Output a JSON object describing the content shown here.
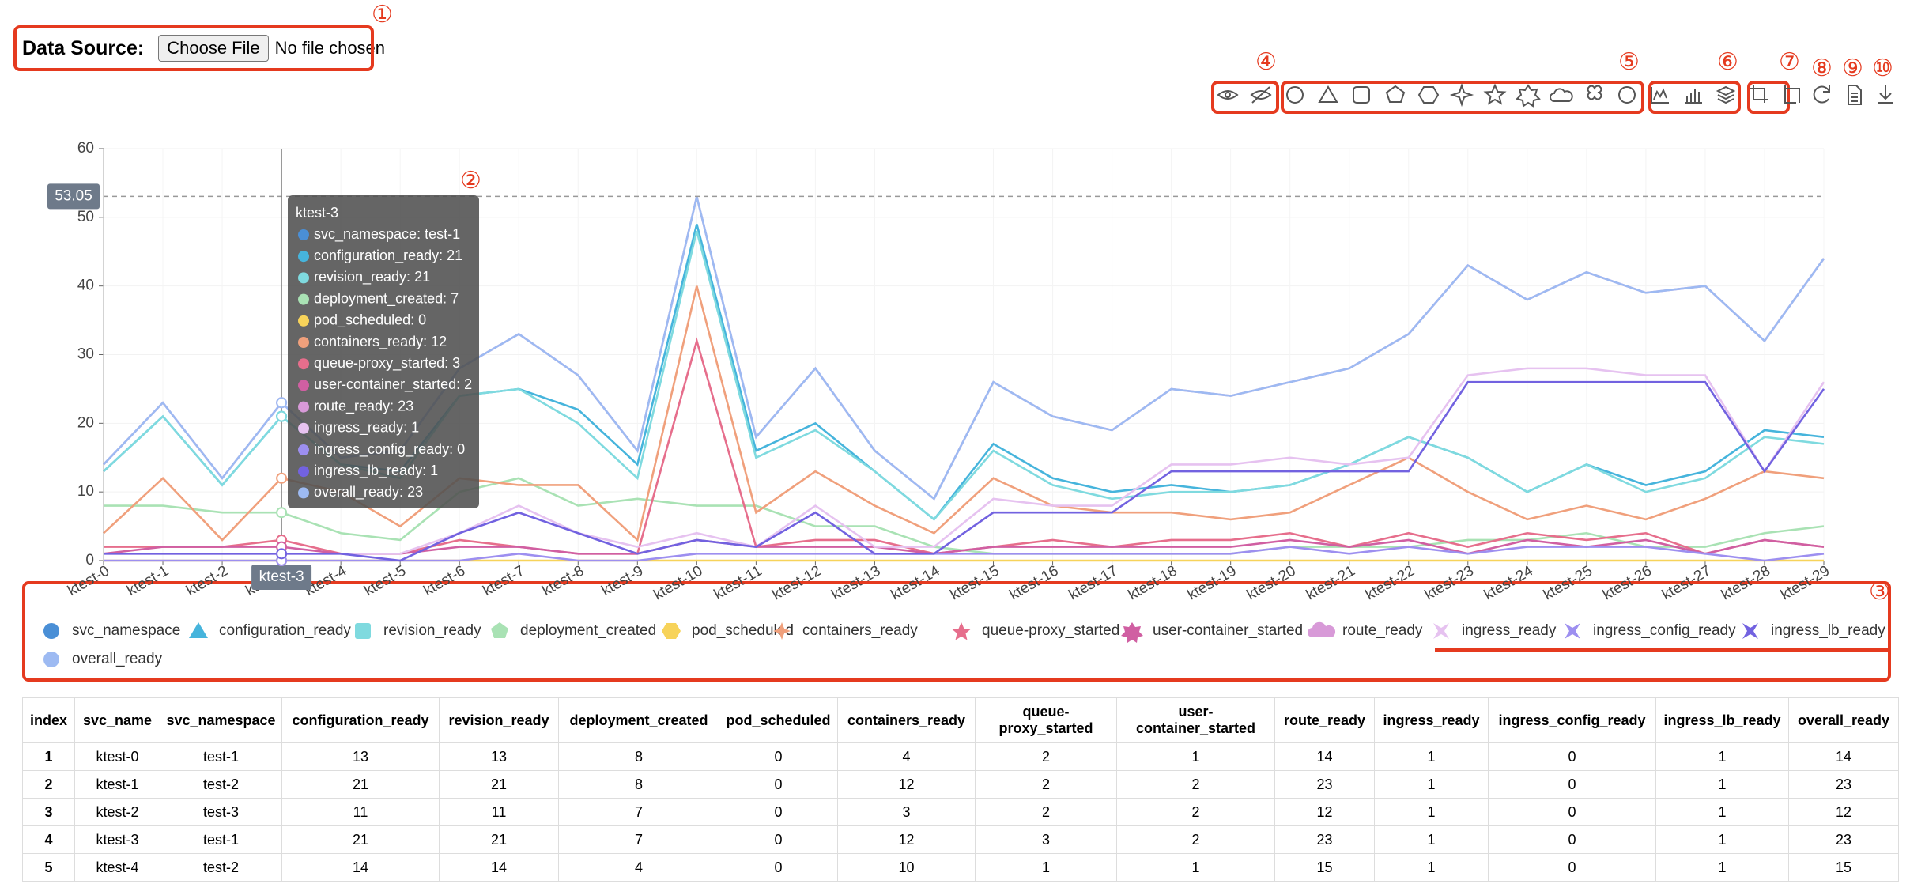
{
  "header": {
    "label": "Data Source:",
    "button": "Choose File",
    "status": "No file chosen"
  },
  "annotations": [
    "①",
    "②",
    "③",
    "④",
    "⑤",
    "⑥",
    "⑦",
    "⑧",
    "⑨",
    "⑩"
  ],
  "chart_data": {
    "type": "line",
    "categories": [
      "ktest-0",
      "ktest-1",
      "ktest-2",
      "ktest-3",
      "ktest-4",
      "ktest-5",
      "ktest-6",
      "ktest-7",
      "ktest-8",
      "ktest-9",
      "ktest-10",
      "ktest-11",
      "ktest-12",
      "ktest-13",
      "ktest-14",
      "ktest-15",
      "ktest-16",
      "ktest-17",
      "ktest-18",
      "ktest-19",
      "ktest-20",
      "ktest-21",
      "ktest-22",
      "ktest-23",
      "ktest-24",
      "ktest-25",
      "ktest-26",
      "ktest-27",
      "ktest-28",
      "ktest-29"
    ],
    "series": [
      {
        "name": "svc_namespace",
        "color": "#4a8fd6",
        "values": [
          null,
          null,
          null,
          null,
          null,
          null,
          null,
          null,
          null,
          null,
          null,
          null,
          null,
          null,
          null,
          null,
          null,
          null,
          null,
          null,
          null,
          null,
          null,
          null,
          null,
          null,
          null,
          null,
          null,
          null
        ]
      },
      {
        "name": "configuration_ready",
        "color": "#46b4dc",
        "values": [
          13,
          21,
          11,
          21,
          14,
          13,
          24,
          25,
          22,
          14,
          49,
          16,
          20,
          13,
          6,
          17,
          12,
          10,
          11,
          10,
          11,
          14,
          18,
          15,
          10,
          14,
          11,
          13,
          19,
          18
        ]
      },
      {
        "name": "revision_ready",
        "color": "#7fdadf",
        "values": [
          13,
          21,
          11,
          21,
          14,
          12,
          24,
          25,
          20,
          12,
          48,
          15,
          19,
          13,
          6,
          16,
          11,
          9,
          10,
          10,
          11,
          14,
          18,
          15,
          10,
          14,
          10,
          12,
          18,
          17
        ]
      },
      {
        "name": "deployment_created",
        "color": "#a9e2b4",
        "values": [
          8,
          8,
          7,
          7,
          4,
          3,
          10,
          12,
          8,
          9,
          8,
          8,
          5,
          5,
          2,
          1,
          1,
          1,
          1,
          1,
          2,
          2,
          2,
          3,
          3,
          4,
          2,
          2,
          4,
          5
        ]
      },
      {
        "name": "pod_scheduled",
        "color": "#f7d35a",
        "values": [
          0,
          0,
          0,
          0,
          0,
          0,
          0,
          0,
          0,
          0,
          0,
          0,
          0,
          0,
          0,
          0,
          0,
          0,
          0,
          0,
          0,
          0,
          0,
          0,
          0,
          0,
          0,
          0,
          0,
          0
        ]
      },
      {
        "name": "containers_ready",
        "color": "#f0a07c",
        "values": [
          4,
          12,
          3,
          12,
          10,
          5,
          12,
          11,
          11,
          3,
          40,
          7,
          13,
          8,
          4,
          12,
          8,
          7,
          7,
          6,
          7,
          11,
          15,
          10,
          6,
          8,
          6,
          9,
          13,
          12
        ]
      },
      {
        "name": "queue-proxy_started",
        "color": "#e66e8c",
        "values": [
          2,
          2,
          2,
          3,
          1,
          1,
          3,
          2,
          1,
          1,
          32,
          2,
          3,
          3,
          1,
          2,
          3,
          2,
          3,
          3,
          4,
          2,
          4,
          2,
          4,
          3,
          4,
          1,
          3,
          2
        ]
      },
      {
        "name": "user-container_started",
        "color": "#d05fa2",
        "values": [
          1,
          2,
          2,
          2,
          1,
          1,
          2,
          2,
          1,
          1,
          3,
          2,
          2,
          2,
          1,
          2,
          2,
          2,
          2,
          2,
          3,
          2,
          3,
          1,
          3,
          2,
          3,
          1,
          3,
          2
        ]
      },
      {
        "name": "route_ready",
        "color": "#d89ad8",
        "values": [
          14,
          23,
          12,
          23,
          15,
          16,
          28,
          33,
          27,
          16,
          53,
          18,
          28,
          16,
          9,
          26,
          21,
          19,
          25,
          24,
          26,
          28,
          33,
          43,
          38,
          42,
          39,
          40,
          32,
          44
        ]
      },
      {
        "name": "ingress_ready",
        "color": "#e6c2f0",
        "values": [
          1,
          1,
          1,
          1,
          1,
          1,
          4,
          8,
          4,
          2,
          4,
          2,
          8,
          2,
          2,
          9,
          8,
          8,
          14,
          14,
          15,
          14,
          15,
          27,
          28,
          28,
          27,
          27,
          13,
          26
        ]
      },
      {
        "name": "ingress_config_ready",
        "color": "#9d8ff0",
        "values": [
          0,
          0,
          0,
          0,
          0,
          0,
          0,
          1,
          0,
          0,
          1,
          1,
          1,
          1,
          1,
          1,
          1,
          1,
          1,
          1,
          2,
          1,
          2,
          1,
          2,
          2,
          2,
          1,
          0,
          1
        ]
      },
      {
        "name": "ingress_lb_ready",
        "color": "#7262e0",
        "values": [
          1,
          1,
          1,
          1,
          1,
          0,
          4,
          7,
          4,
          1,
          3,
          2,
          7,
          1,
          1,
          7,
          7,
          7,
          13,
          13,
          13,
          13,
          13,
          26,
          26,
          26,
          26,
          26,
          13,
          25
        ]
      },
      {
        "name": "overall_ready",
        "color": "#9dbaf2",
        "values": [
          14,
          23,
          12,
          23,
          15,
          16,
          28,
          33,
          27,
          16,
          53,
          18,
          28,
          16,
          9,
          26,
          21,
          19,
          25,
          24,
          26,
          28,
          33,
          43,
          38,
          42,
          39,
          40,
          32,
          44
        ]
      }
    ],
    "ylim": [
      0,
      60
    ],
    "yticks": [
      0,
      10,
      20,
      30,
      40,
      50,
      60
    ],
    "grid": true,
    "crosshair": {
      "y": 53.05,
      "x_label": "ktest-3"
    },
    "tooltip": {
      "title": "ktest-3",
      "items": [
        "svc_namespace: test-1",
        "configuration_ready: 21",
        "revision_ready: 21",
        "deployment_created: 7",
        "pod_scheduled: 0",
        "containers_ready: 12",
        "queue-proxy_started: 3",
        "user-container_started: 2",
        "route_ready: 23",
        "ingress_ready: 1",
        "ingress_config_ready: 0",
        "ingress_lb_ready: 1",
        "overall_ready: 23"
      ]
    }
  },
  "table": {
    "columns": [
      "index",
      "svc_name",
      "svc_namespace",
      "configuration_ready",
      "revision_ready",
      "deployment_created",
      "pod_scheduled",
      "containers_ready",
      "queue-proxy_started",
      "user-container_started",
      "route_ready",
      "ingress_ready",
      "ingress_config_ready",
      "ingress_lb_ready",
      "overall_ready"
    ],
    "rows": [
      [
        1,
        "ktest-0",
        "test-1",
        13,
        13,
        8,
        0,
        4,
        2,
        1,
        14,
        1,
        0,
        1,
        14
      ],
      [
        2,
        "ktest-1",
        "test-2",
        21,
        21,
        8,
        0,
        12,
        2,
        2,
        23,
        1,
        0,
        1,
        23
      ],
      [
        3,
        "ktest-2",
        "test-3",
        11,
        11,
        7,
        0,
        3,
        2,
        2,
        12,
        1,
        0,
        1,
        12
      ],
      [
        4,
        "ktest-3",
        "test-1",
        21,
        21,
        7,
        0,
        12,
        3,
        2,
        23,
        1,
        0,
        1,
        23
      ],
      [
        5,
        "ktest-4",
        "test-2",
        14,
        14,
        4,
        0,
        10,
        1,
        1,
        15,
        1,
        0,
        1,
        15
      ]
    ]
  }
}
